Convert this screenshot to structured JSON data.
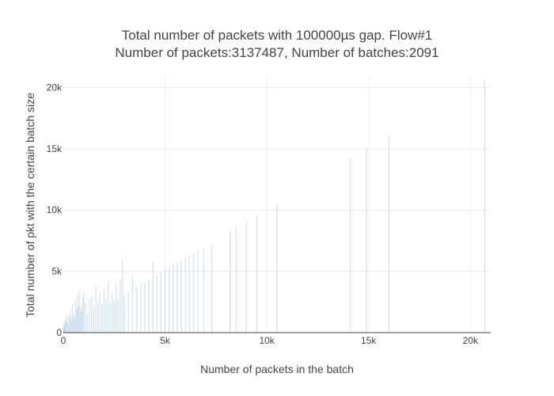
{
  "chart_data": {
    "type": "bar",
    "title": "Total number of packets with 100000µs gap. Flow#1",
    "subtitle": "Number of packets:3137487, Number of batches:2091",
    "xlabel": "Number of packets in the batch",
    "ylabel": "Total number of pkt with the certain batch size",
    "xlim": [
      0,
      21000
    ],
    "ylim": [
      0,
      21000
    ],
    "x_ticks": [
      0,
      5000,
      10000,
      15000,
      20000
    ],
    "x_tick_labels": [
      "0",
      "5k",
      "10k",
      "15k",
      "20k"
    ],
    "y_ticks": [
      0,
      5000,
      10000,
      15000,
      20000
    ],
    "y_tick_labels": [
      "0",
      "5k",
      "10k",
      "15k",
      "20k"
    ],
    "grid": true,
    "bar_color": "#1f77b4",
    "points": [
      [
        10,
        400
      ],
      [
        30,
        600
      ],
      [
        60,
        800
      ],
      [
        100,
        1200
      ],
      [
        150,
        900
      ],
      [
        200,
        1600
      ],
      [
        250,
        700
      ],
      [
        300,
        1300
      ],
      [
        350,
        1800
      ],
      [
        400,
        1000
      ],
      [
        450,
        2300
      ],
      [
        500,
        1500
      ],
      [
        550,
        1100
      ],
      [
        600,
        2600
      ],
      [
        650,
        1900
      ],
      [
        700,
        3100
      ],
      [
        750,
        2200
      ],
      [
        800,
        3500
      ],
      [
        850,
        1700
      ],
      [
        900,
        2000
      ],
      [
        950,
        2900
      ],
      [
        1000,
        3300
      ],
      [
        1100,
        2400
      ],
      [
        1200,
        1500
      ],
      [
        1300,
        2700
      ],
      [
        1400,
        3000
      ],
      [
        1500,
        2100
      ],
      [
        1600,
        3800
      ],
      [
        1700,
        2500
      ],
      [
        1800,
        3300
      ],
      [
        1900,
        2300
      ],
      [
        2000,
        3600
      ],
      [
        2100,
        2700
      ],
      [
        2200,
        4200
      ],
      [
        2300,
        2400
      ],
      [
        2400,
        3200
      ],
      [
        2500,
        2600
      ],
      [
        2600,
        3900
      ],
      [
        2700,
        2800
      ],
      [
        2800,
        4300
      ],
      [
        2900,
        6000
      ],
      [
        3000,
        3100
      ],
      [
        3200,
        3300
      ],
      [
        3400,
        4700
      ],
      [
        3600,
        3700
      ],
      [
        3800,
        4000
      ],
      [
        4000,
        4100
      ],
      [
        4200,
        4300
      ],
      [
        4400,
        5800
      ],
      [
        4600,
        4700
      ],
      [
        4800,
        4900
      ],
      [
        5000,
        5100
      ],
      [
        5200,
        5300
      ],
      [
        5400,
        5600
      ],
      [
        5600,
        5700
      ],
      [
        5800,
        5900
      ],
      [
        6000,
        6100
      ],
      [
        6200,
        6300
      ],
      [
        6400,
        6500
      ],
      [
        6600,
        6700
      ],
      [
        6900,
        6800
      ],
      [
        7300,
        7200
      ],
      [
        8200,
        8300
      ],
      [
        8500,
        8700
      ],
      [
        9000,
        9100
      ],
      [
        9500,
        9600
      ],
      [
        10500,
        10400
      ],
      [
        14100,
        14200
      ],
      [
        14900,
        15000
      ],
      [
        16000,
        16000
      ],
      [
        20700,
        20600
      ]
    ]
  }
}
